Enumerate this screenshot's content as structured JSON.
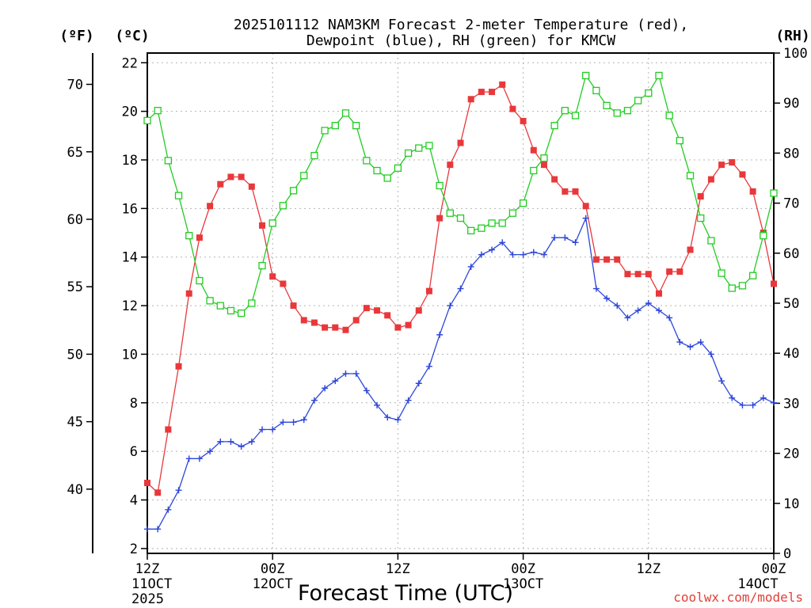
{
  "chart_data": {
    "type": "line",
    "title": [
      "2025101112 NAM3KM Forecast 2-meter Temperature (red),",
      "Dewpoint (blue), RH (green) for KMCW"
    ],
    "xlabel": "Forecast Time (UTC)",
    "credit": "coolwx.com/models",
    "units": {
      "fahrenheit": "(ºF)",
      "celsius": "(ºC)",
      "rh": "(RH)"
    },
    "x_range_hours": [
      0,
      60
    ],
    "x_ticks": [
      {
        "hour": 0,
        "label": [
          "12Z",
          "11OCT",
          "2025"
        ]
      },
      {
        "hour": 12,
        "label": [
          "00Z",
          "12OCT"
        ]
      },
      {
        "hour": 24,
        "label": [
          "12Z"
        ]
      },
      {
        "hour": 36,
        "label": [
          "00Z",
          "13OCT"
        ]
      },
      {
        "hour": 48,
        "label": [
          "12Z"
        ]
      },
      {
        "hour": 60,
        "label": [
          "00Z",
          "14OCT"
        ]
      }
    ],
    "y_celsius": {
      "range": [
        1.8,
        22.4
      ],
      "ticks": [
        2,
        4,
        6,
        8,
        10,
        12,
        14,
        16,
        18,
        20,
        22
      ]
    },
    "y_fahrenheit": {
      "ticks": [
        40,
        45,
        50,
        55,
        60,
        65,
        70
      ]
    },
    "y_rh": {
      "range": [
        0,
        100
      ],
      "ticks": [
        0,
        10,
        20,
        30,
        40,
        50,
        60,
        70,
        80,
        90,
        100
      ]
    },
    "grid": true,
    "series": [
      {
        "name": "Temperature",
        "axis": "celsius",
        "color": "#e8383b",
        "marker": "filled-square",
        "x": [
          0,
          1,
          2,
          3,
          4,
          5,
          6,
          7,
          8,
          9,
          10,
          11,
          12,
          13,
          14,
          15,
          16,
          17,
          18,
          19,
          20,
          21,
          22,
          23,
          24,
          25,
          26,
          27,
          28,
          29,
          30,
          31,
          32,
          33,
          34,
          35,
          36,
          37,
          38,
          39,
          40,
          41,
          42,
          43,
          44,
          45,
          46,
          47,
          48,
          49,
          50,
          51,
          52,
          53,
          54,
          55,
          56,
          57,
          58,
          59,
          60
        ],
        "y": [
          4.7,
          4.3,
          6.9,
          9.5,
          12.5,
          14.8,
          16.1,
          17.0,
          17.3,
          17.3,
          16.9,
          15.3,
          13.2,
          12.9,
          12.0,
          11.4,
          11.3,
          11.1,
          11.1,
          11.0,
          11.4,
          11.9,
          11.8,
          11.6,
          11.1,
          11.2,
          11.8,
          12.6,
          15.6,
          17.8,
          18.7,
          20.5,
          20.8,
          20.8,
          21.1,
          20.1,
          19.6,
          18.4,
          17.8,
          17.2,
          16.7,
          16.7,
          16.1,
          13.9,
          13.9,
          13.9,
          13.3,
          13.3,
          13.3,
          12.5,
          13.4,
          13.4,
          14.3,
          16.5,
          17.2,
          17.8,
          17.9,
          17.4,
          16.7,
          15.0,
          12.9
        ]
      },
      {
        "name": "Dewpoint",
        "axis": "celsius",
        "color": "#2d46d8",
        "marker": "plus",
        "x": [
          0,
          1,
          2,
          3,
          4,
          5,
          6,
          7,
          8,
          9,
          10,
          11,
          12,
          13,
          14,
          15,
          16,
          17,
          18,
          19,
          20,
          21,
          22,
          23,
          24,
          25,
          26,
          27,
          28,
          29,
          30,
          31,
          32,
          33,
          34,
          35,
          36,
          37,
          38,
          39,
          40,
          41,
          42,
          43,
          44,
          45,
          46,
          47,
          48,
          49,
          50,
          51,
          52,
          53,
          54,
          55,
          56,
          57,
          58,
          59,
          60
        ],
        "y": [
          2.8,
          2.8,
          3.6,
          4.4,
          5.7,
          5.7,
          6.0,
          6.4,
          6.4,
          6.2,
          6.4,
          6.9,
          6.9,
          7.2,
          7.2,
          7.3,
          8.1,
          8.6,
          8.9,
          9.2,
          9.2,
          8.5,
          7.9,
          7.4,
          7.3,
          8.1,
          8.8,
          9.5,
          10.8,
          12.0,
          12.7,
          13.6,
          14.1,
          14.3,
          14.6,
          14.1,
          14.1,
          14.2,
          14.1,
          14.8,
          14.8,
          14.6,
          15.6,
          12.7,
          12.3,
          12.0,
          11.5,
          11.8,
          12.1,
          11.8,
          11.5,
          10.5,
          10.3,
          10.5,
          10.0,
          8.9,
          8.2,
          7.9,
          7.9,
          8.2,
          8.0
        ]
      },
      {
        "name": "RH",
        "axis": "rh",
        "color": "#22cc22",
        "marker": "open-square",
        "x": [
          0,
          1,
          2,
          3,
          4,
          5,
          6,
          7,
          8,
          9,
          10,
          11,
          12,
          13,
          14,
          15,
          16,
          17,
          18,
          19,
          20,
          21,
          22,
          23,
          24,
          25,
          26,
          27,
          28,
          29,
          30,
          31,
          32,
          33,
          34,
          35,
          36,
          37,
          38,
          39,
          40,
          41,
          42,
          43,
          44,
          45,
          46,
          47,
          48,
          49,
          50,
          51,
          52,
          53,
          54,
          55,
          56,
          57,
          58,
          59,
          60
        ],
        "y": [
          86.5,
          88.5,
          78.5,
          71.5,
          63.5,
          54.5,
          50.5,
          49.5,
          48.5,
          48,
          50,
          57.5,
          66,
          69.5,
          72.5,
          75.5,
          79.5,
          84.5,
          85.5,
          88,
          85.5,
          78.5,
          76.5,
          75,
          77,
          80,
          81,
          81.5,
          73.5,
          68,
          67,
          64.5,
          65,
          66,
          66,
          68,
          70,
          76.5,
          79,
          85.5,
          88.5,
          87.5,
          95.5,
          92.5,
          89.5,
          88,
          88.5,
          90.5,
          92,
          95.5,
          87.5,
          82.5,
          75.5,
          67,
          62.5,
          56,
          53,
          53.5,
          55.5,
          63.5,
          72
        ]
      }
    ]
  }
}
